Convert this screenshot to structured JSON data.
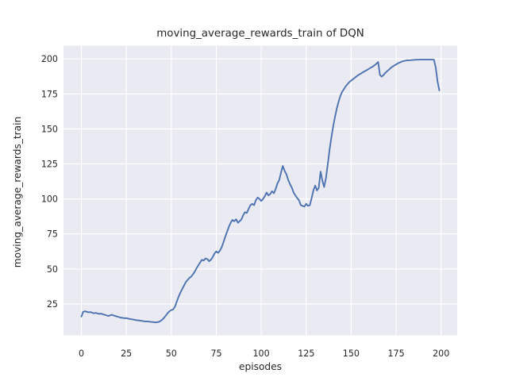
{
  "chart_data": {
    "type": "line",
    "title": "moving_average_rewards_train of DQN",
    "xlabel": "episodes",
    "ylabel": "moving_average_rewards_train",
    "series_name": "moving average rewards (train) of DQN",
    "xticks": [
      0,
      25,
      50,
      75,
      100,
      125,
      150,
      175,
      200
    ],
    "yticks": [
      25,
      50,
      75,
      100,
      125,
      150,
      175,
      200
    ],
    "xlim": [
      -9.95,
      208.95
    ],
    "ylim": [
      2.6,
      209.4
    ],
    "grid": true,
    "legend": false,
    "x": [
      0,
      1,
      2,
      3,
      4,
      5,
      6,
      7,
      8,
      9,
      10,
      11,
      12,
      13,
      14,
      15,
      16,
      17,
      18,
      19,
      20,
      21,
      22,
      23,
      24,
      25,
      26,
      27,
      28,
      29,
      30,
      31,
      32,
      33,
      34,
      35,
      36,
      37,
      38,
      39,
      40,
      41,
      42,
      43,
      44,
      45,
      46,
      47,
      48,
      49,
      50,
      51,
      52,
      53,
      54,
      55,
      56,
      57,
      58,
      59,
      60,
      61,
      62,
      63,
      64,
      65,
      66,
      67,
      68,
      69,
      70,
      71,
      72,
      73,
      74,
      75,
      76,
      77,
      78,
      79,
      80,
      81,
      82,
      83,
      84,
      85,
      86,
      87,
      88,
      89,
      90,
      91,
      92,
      93,
      94,
      95,
      96,
      97,
      98,
      99,
      100,
      101,
      102,
      103,
      104,
      105,
      106,
      107,
      108,
      109,
      110,
      111,
      112,
      113,
      114,
      115,
      116,
      117,
      118,
      119,
      120,
      121,
      122,
      123,
      124,
      125,
      126,
      127,
      128,
      129,
      130,
      131,
      132,
      133,
      134,
      135,
      136,
      137,
      138,
      139,
      140,
      141,
      142,
      143,
      144,
      145,
      146,
      147,
      148,
      149,
      150,
      151,
      152,
      153,
      154,
      155,
      156,
      157,
      158,
      159,
      160,
      161,
      162,
      163,
      164,
      165,
      166,
      167,
      168,
      169,
      170,
      171,
      172,
      173,
      174,
      175,
      176,
      177,
      178,
      179,
      180,
      181,
      182,
      183,
      184,
      185,
      186,
      187,
      188,
      189,
      190,
      191,
      192,
      193,
      194,
      195,
      196,
      197,
      198,
      199
    ],
    "y": [
      16.0,
      19.3,
      19.8,
      19.4,
      19.0,
      19.2,
      18.7,
      18.3,
      18.6,
      18.2,
      17.9,
      18.1,
      17.5,
      17.2,
      16.8,
      16.4,
      16.9,
      17.2,
      16.7,
      16.3,
      15.9,
      15.6,
      15.2,
      15.0,
      14.8,
      14.9,
      14.5,
      14.3,
      14.0,
      13.8,
      13.5,
      13.3,
      13.2,
      13.0,
      12.8,
      12.6,
      12.5,
      12.4,
      12.3,
      12.1,
      12.0,
      11.8,
      11.9,
      12.1,
      12.8,
      13.8,
      15.2,
      16.8,
      18.5,
      19.8,
      20.6,
      21.0,
      23.0,
      26.5,
      30.0,
      33.0,
      35.5,
      38.0,
      40.5,
      42.0,
      43.5,
      44.5,
      46.0,
      48.0,
      50.5,
      52.5,
      54.5,
      56.5,
      56.0,
      57.5,
      57.0,
      55.5,
      56.5,
      58.5,
      61.0,
      62.5,
      61.5,
      63.0,
      65.5,
      69.0,
      73.0,
      76.5,
      80.0,
      83.0,
      85.0,
      84.0,
      85.5,
      83.0,
      84.0,
      85.5,
      88.5,
      90.5,
      90.0,
      93.0,
      95.5,
      96.5,
      95.5,
      99.0,
      101.0,
      100.0,
      98.5,
      100.0,
      102.0,
      104.5,
      102.5,
      103.5,
      105.5,
      104.0,
      107.0,
      111.0,
      113.5,
      119.0,
      123.5,
      120.0,
      117.5,
      113.5,
      110.5,
      108.0,
      104.5,
      102.5,
      100.5,
      99.0,
      95.5,
      95.0,
      94.5,
      96.5,
      95.0,
      95.5,
      100.5,
      106.0,
      109.5,
      106.0,
      108.0,
      119.5,
      113.0,
      108.5,
      115.0,
      125.0,
      135.0,
      144.0,
      152.0,
      158.5,
      164.5,
      169.5,
      173.5,
      176.5,
      178.5,
      180.5,
      182.0,
      183.5,
      184.5,
      185.5,
      186.5,
      187.5,
      188.5,
      189.2,
      190.0,
      190.8,
      191.5,
      192.2,
      193.0,
      193.8,
      194.5,
      195.5,
      196.5,
      197.8,
      188.5,
      187.3,
      188.5,
      190.0,
      191.2,
      192.3,
      193.5,
      194.5,
      195.3,
      196.0,
      196.8,
      197.4,
      198.0,
      198.4,
      198.7,
      198.9,
      199.0,
      199.1,
      199.2,
      199.3,
      199.4,
      199.4,
      199.5,
      199.5,
      199.5,
      199.5,
      199.5,
      199.5,
      199.5,
      199.5,
      199.4,
      194.0,
      184.0,
      177.5
    ],
    "style": {
      "line_color": "#4C72B0",
      "plot_background": "#EAEAF2",
      "grid_color": "#FFFFFF",
      "text_color": "#262626",
      "figure_background": "#FFFFFF"
    }
  }
}
